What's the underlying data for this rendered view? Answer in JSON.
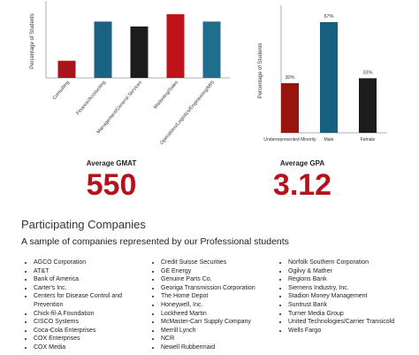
{
  "chart_data": [
    {
      "type": "bar",
      "y_label": "Percentage of Students",
      "categories": [
        "Consulting",
        "Finance/Accounting",
        "Management/General Services",
        "Marketing/Sales",
        "Operations/Logistics/Engineering/MIS"
      ],
      "values": [
        7,
        23,
        21,
        26,
        23
      ],
      "colors": [
        "#a8141b",
        "#1b6382",
        "#1c1c1c",
        "#c0121b",
        "#1e6e8c"
      ],
      "ylim": [
        0,
        30
      ]
    },
    {
      "type": "bar",
      "y_label": "Percentage of Students",
      "categories": [
        "Underrepresented Minority",
        "Male",
        "Female"
      ],
      "values": [
        30,
        67,
        33
      ],
      "value_labels": [
        "30%",
        "67%",
        "33%"
      ],
      "colors": [
        "#98140f",
        "#15607e",
        "#1c1c1c"
      ],
      "ylim": [
        0,
        75
      ]
    }
  ],
  "stats": [
    {
      "label": "Average GMAT",
      "value": 550
    },
    {
      "label": "Average GPA",
      "value": 3.12
    }
  ],
  "companies": {
    "title": "Participating Companies",
    "subtitle": "A sample of companies represented by our Professional students",
    "columns": [
      [
        "AGCO Corporation",
        "AT&T",
        "Bank of America",
        "Carter's Inc.",
        "Centers for Disease Control and Prevention",
        "Chick-fil-A Foundation",
        "CISCO Systems",
        "Coca-Cola Enterprises",
        "COX Enterprises",
        "COX Media"
      ],
      [
        "Credit Suisse Securities",
        "GE Energy",
        "Genuine Parts Co.",
        "Georiga Transmission Corporation",
        "The Home Depot",
        "Honeywell, Inc.",
        "Lockheed Martin",
        "McMaster-Carr Supply Company",
        "Merrill Lynch",
        "NCR",
        "Newell Rubbermaid"
      ],
      [
        "Norfolk Southern Corporation",
        "Ogilvy & Mather",
        "Regions Bank",
        "Siemens Industry, Inc.",
        "Stadion Money Management",
        "Suntrust Bank",
        "Turner Media Group",
        "United Technologies/Carrier Transicold",
        "Wells Fargo"
      ]
    ]
  }
}
